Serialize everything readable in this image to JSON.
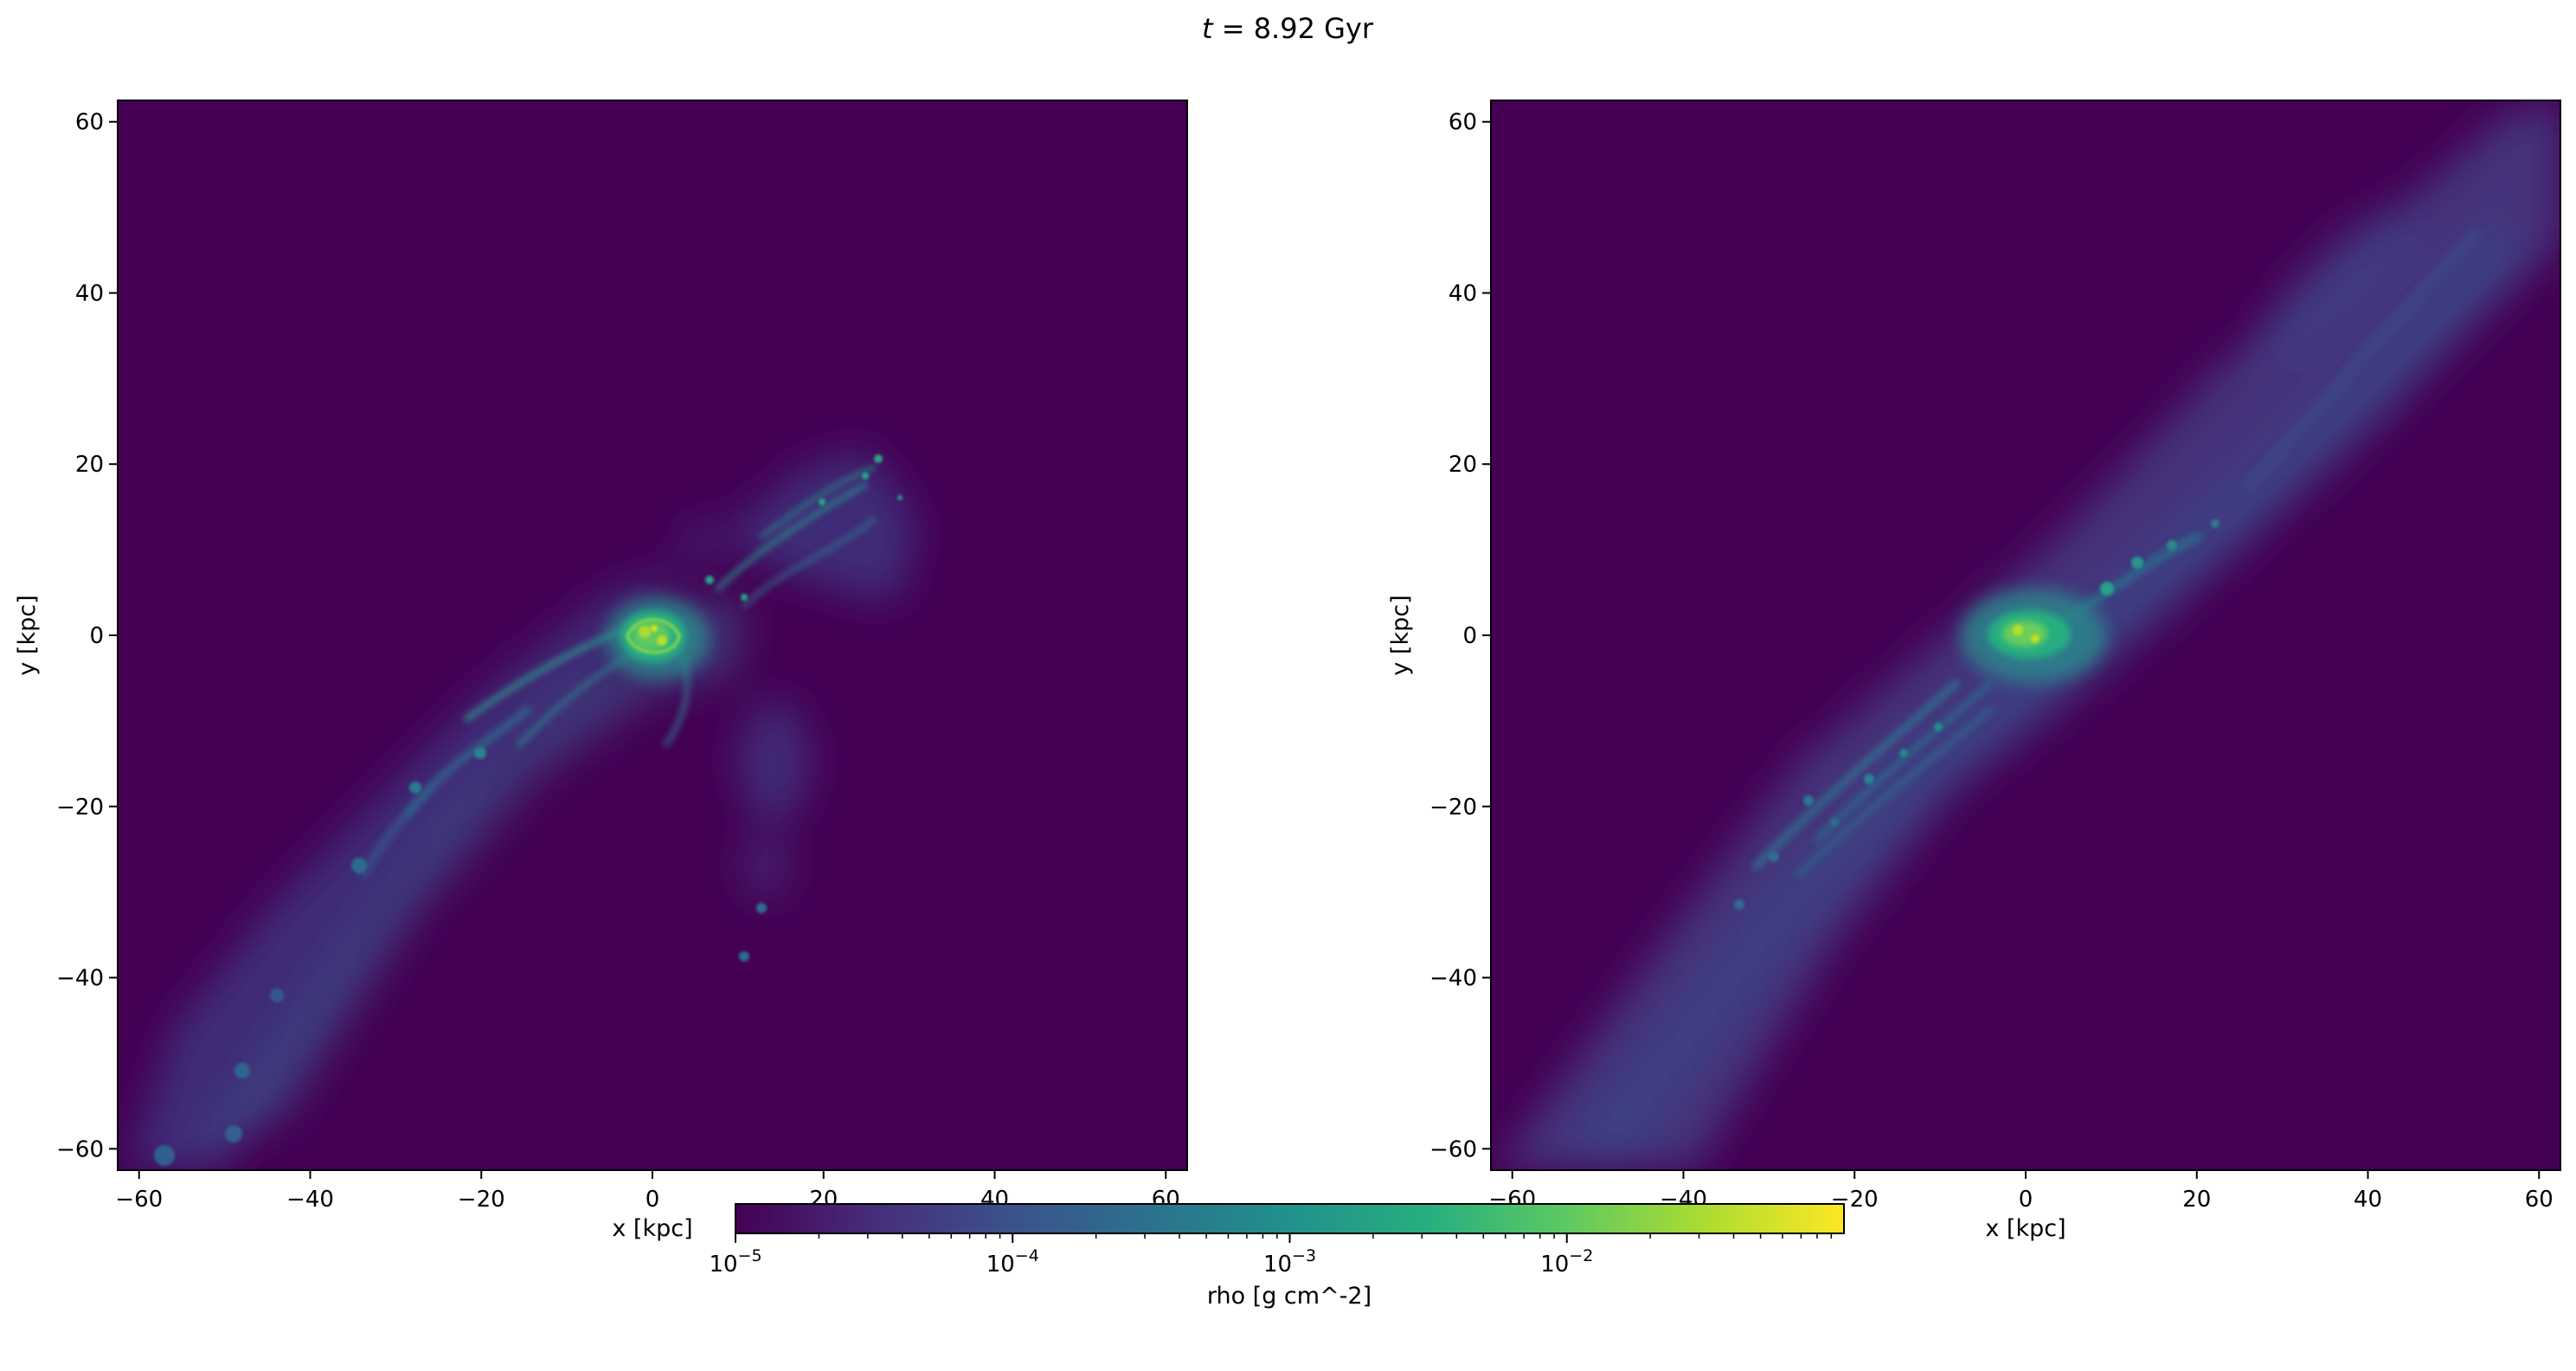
{
  "figure": {
    "title_var": "t",
    "title_rest": " = 8.92 Gyr",
    "colors": {
      "background": "#ffffff",
      "floor": "#440154",
      "axes": "#000000"
    }
  },
  "chart_data": [
    {
      "type": "heatmap",
      "xlabel": "x [kpc]",
      "ylabel": "y [kpc]",
      "xlim": [
        -62.5,
        62.5
      ],
      "ylim": [
        -62.5,
        62.5
      ],
      "xticks": [
        -60,
        -40,
        -20,
        0,
        20,
        40,
        60
      ],
      "yticks": [
        -60,
        -40,
        -20,
        0,
        20,
        40,
        60
      ],
      "xtick_labels": [
        "−60",
        "−40",
        "−20",
        "0",
        "20",
        "40",
        "60"
      ],
      "ytick_labels": [
        "−60",
        "−40",
        "−20",
        "0",
        "20",
        "40",
        "60"
      ],
      "core": {
        "x": -1,
        "y": 0,
        "peak_log_rho": -1.5
      },
      "features": [
        {
          "kind": "tail",
          "from": [
            -58,
            -62
          ],
          "to": [
            -2,
            0
          ],
          "log_rho": -3.5,
          "width_kpc": 16
        },
        {
          "kind": "plume",
          "from": [
            -2,
            0
          ],
          "to": [
            28,
            18
          ],
          "log_rho": -3.9,
          "width_kpc": 14
        },
        {
          "kind": "clump",
          "x": 10.5,
          "y": -32.5,
          "log_rho": -3.3
        },
        {
          "kind": "clump",
          "x": 12.5,
          "y": -27,
          "log_rho": -3.5
        }
      ]
    },
    {
      "type": "heatmap",
      "xlabel": "x [kpc]",
      "ylabel": "y [kpc]",
      "xlim": [
        -62.5,
        62.5
      ],
      "ylim": [
        -62.5,
        62.5
      ],
      "xticks": [
        -60,
        -40,
        -20,
        0,
        20,
        40,
        60
      ],
      "yticks": [
        -60,
        -40,
        -20,
        0,
        20,
        40,
        60
      ],
      "xtick_labels": [
        "−60",
        "−40",
        "−20",
        "0",
        "20",
        "40",
        "60"
      ],
      "ytick_labels": [
        "−60",
        "−40",
        "−20",
        "0",
        "20",
        "40",
        "60"
      ],
      "core": {
        "x": 0,
        "y": 0,
        "peak_log_rho": -1.6
      },
      "features": [
        {
          "kind": "tail",
          "from": [
            -55,
            -62
          ],
          "to": [
            0,
            0
          ],
          "log_rho": -3.8,
          "width_kpc": 22
        },
        {
          "kind": "plume",
          "from": [
            0,
            0
          ],
          "to": [
            60,
            60
          ],
          "log_rho": -4.1,
          "width_kpc": 22
        }
      ]
    }
  ],
  "colorbar": {
    "label": "rho [g cm^-2]",
    "scale": "log",
    "vmin": 1e-05,
    "vmax": 0.1,
    "colormap": "viridis",
    "ticks": [
      {
        "base": "10",
        "exp": "−5",
        "value": 1e-05
      },
      {
        "base": "10",
        "exp": "−4",
        "value": 0.0001
      },
      {
        "base": "10",
        "exp": "−3",
        "value": 0.001
      },
      {
        "base": "10",
        "exp": "−2",
        "value": 0.01
      }
    ]
  }
}
